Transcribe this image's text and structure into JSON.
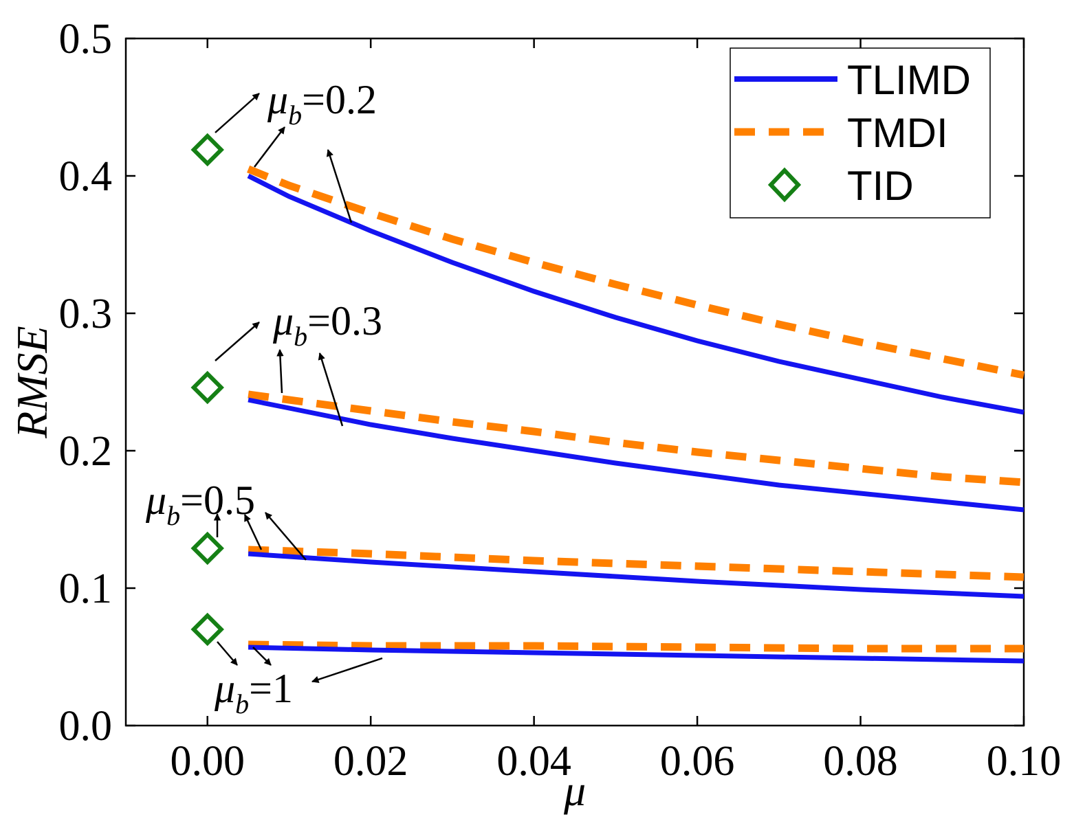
{
  "chart_data": {
    "type": "line",
    "xlabel": "μ",
    "ylabel": "RMSE",
    "xlim": [
      -0.01,
      0.1
    ],
    "ylim": [
      0.0,
      0.5
    ],
    "x_ticks": [
      "0.00",
      "0.02",
      "0.04",
      "0.06",
      "0.08",
      "0.10"
    ],
    "y_ticks": [
      "0.0",
      "0.1",
      "0.2",
      "0.3",
      "0.4",
      "0.5"
    ],
    "legend": {
      "position": "top-right",
      "entries": [
        "TLIMD",
        "TMDI",
        "TID"
      ]
    },
    "colors": {
      "TLIMD": "#1414f0",
      "TMDI": "#ff8000",
      "TID": "#158015"
    },
    "groups": [
      {
        "label": "μb=0.2",
        "TID": 0.419,
        "TLIMD": {
          "x": [
            0.005,
            0.01,
            0.02,
            0.03,
            0.04,
            0.05,
            0.06,
            0.07,
            0.08,
            0.09,
            0.1
          ],
          "y": [
            0.4,
            0.385,
            0.36,
            0.337,
            0.316,
            0.297,
            0.28,
            0.265,
            0.252,
            0.239,
            0.228
          ]
        },
        "TMDI": {
          "x": [
            0.005,
            0.01,
            0.02,
            0.03,
            0.04,
            0.05,
            0.06,
            0.07,
            0.08,
            0.09,
            0.1
          ],
          "y": [
            0.405,
            0.393,
            0.373,
            0.354,
            0.337,
            0.321,
            0.306,
            0.292,
            0.279,
            0.267,
            0.255
          ]
        }
      },
      {
        "label": "μb=0.3",
        "TID": 0.246,
        "TLIMD": {
          "x": [
            0.005,
            0.01,
            0.02,
            0.03,
            0.04,
            0.05,
            0.06,
            0.07,
            0.08,
            0.09,
            0.1
          ],
          "y": [
            0.237,
            0.231,
            0.219,
            0.209,
            0.2,
            0.191,
            0.183,
            0.175,
            0.169,
            0.163,
            0.157
          ]
        },
        "TMDI": {
          "x": [
            0.005,
            0.01,
            0.02,
            0.03,
            0.04,
            0.05,
            0.06,
            0.07,
            0.08,
            0.09,
            0.1
          ],
          "y": [
            0.241,
            0.237,
            0.229,
            0.221,
            0.214,
            0.206,
            0.199,
            0.193,
            0.187,
            0.181,
            0.177
          ]
        }
      },
      {
        "label": "μb=0.5",
        "TID": 0.129,
        "TLIMD": {
          "x": [
            0.005,
            0.02,
            0.04,
            0.06,
            0.08,
            0.1
          ],
          "y": [
            0.125,
            0.119,
            0.112,
            0.105,
            0.099,
            0.094
          ]
        },
        "TMDI": {
          "x": [
            0.005,
            0.02,
            0.04,
            0.06,
            0.08,
            0.1
          ],
          "y": [
            0.128,
            0.125,
            0.12,
            0.116,
            0.112,
            0.108
          ]
        }
      },
      {
        "label": "μb=1",
        "TID": 0.07,
        "TLIMD": {
          "x": [
            0.005,
            0.02,
            0.04,
            0.06,
            0.08,
            0.1
          ],
          "y": [
            0.057,
            0.055,
            0.053,
            0.051,
            0.049,
            0.047
          ]
        },
        "TMDI": {
          "x": [
            0.005,
            0.02,
            0.04,
            0.06,
            0.08,
            0.1
          ],
          "y": [
            0.059,
            0.058,
            0.058,
            0.057,
            0.056,
            0.056
          ]
        }
      }
    ],
    "annotations": [
      {
        "symbol": "μ",
        "sub": "b",
        "value": "=0.2"
      },
      {
        "symbol": "μ",
        "sub": "b",
        "value": "=0.3"
      },
      {
        "symbol": "μ",
        "sub": "b",
        "value": "=0.5"
      },
      {
        "symbol": "μ",
        "sub": "b",
        "value": "=1"
      }
    ]
  }
}
